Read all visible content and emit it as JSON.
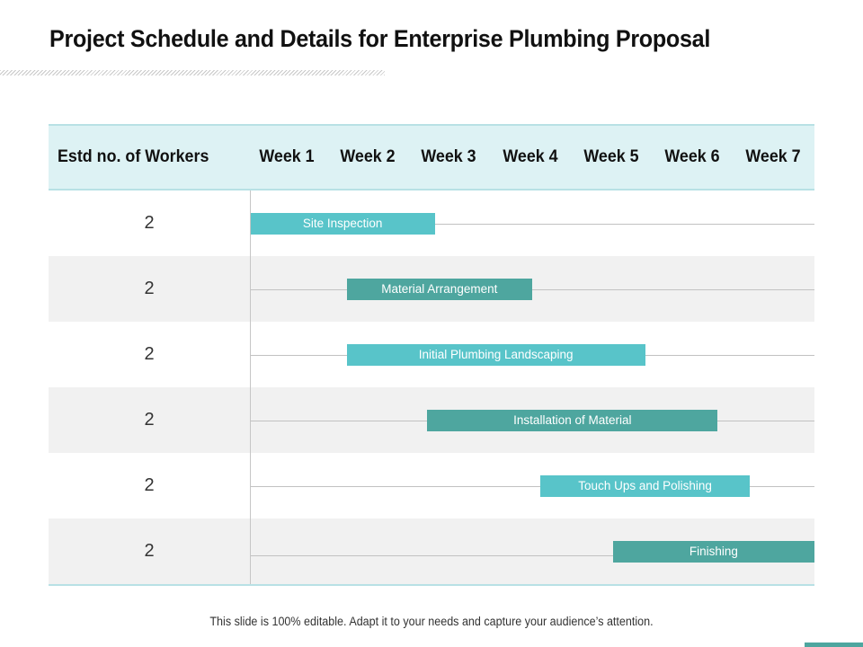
{
  "title": "Project Schedule and Details for Enterprise Plumbing Proposal",
  "table": {
    "header_first": "Estd no. of Workers",
    "weeks": [
      "Week 1",
      "Week 2",
      "Week 3",
      "Week 4",
      "Week 5",
      "Week 6",
      "Week 7"
    ],
    "rows": [
      {
        "workers": "2",
        "task": "Site Inspection",
        "start_week": 0.0,
        "end_week": 2.3
      },
      {
        "workers": "2",
        "task": "Material Arrangement",
        "start_week": 1.2,
        "end_week": 3.5
      },
      {
        "workers": "2",
        "task": "Initial Plumbing Landscaping",
        "start_week": 1.2,
        "end_week": 4.9
      },
      {
        "workers": "2",
        "task": "Installation of Material",
        "start_week": 2.2,
        "end_week": 5.8
      },
      {
        "workers": "2",
        "task": "Touch Ups and Polishing",
        "start_week": 3.6,
        "end_week": 6.2
      },
      {
        "workers": "2",
        "task": "Finishing",
        "start_week": 4.5,
        "end_week": 7.0
      }
    ]
  },
  "footer": "This slide is 100% editable. Adapt it to your needs and capture your audience’s attention.",
  "colors": {
    "light_bar": "#58c4c9",
    "dark_bar": "#4ea69f",
    "header_bg": "#ddf2f4",
    "alt_row": "#f1f1f1"
  }
}
